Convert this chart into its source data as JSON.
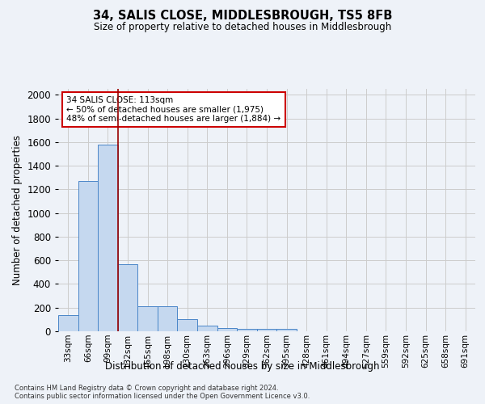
{
  "title": "34, SALIS CLOSE, MIDDLESBROUGH, TS5 8FB",
  "subtitle": "Size of property relative to detached houses in Middlesbrough",
  "xlabel": "Distribution of detached houses by size in Middlesbrough",
  "ylabel": "Number of detached properties",
  "categories": [
    "33sqm",
    "66sqm",
    "99sqm",
    "132sqm",
    "165sqm",
    "198sqm",
    "230sqm",
    "263sqm",
    "296sqm",
    "329sqm",
    "362sqm",
    "395sqm",
    "428sqm",
    "461sqm",
    "494sqm",
    "527sqm",
    "559sqm",
    "592sqm",
    "625sqm",
    "658sqm",
    "691sqm"
  ],
  "bar_heights": [
    140,
    1270,
    1580,
    570,
    215,
    215,
    100,
    50,
    25,
    20,
    20,
    20,
    0,
    0,
    0,
    0,
    0,
    0,
    0,
    0,
    0
  ],
  "bar_color": "#c5d8ef",
  "bar_edge_color": "#4a86c8",
  "grid_color": "#cccccc",
  "background_color": "#eef2f8",
  "red_line_x": 2.5,
  "annotation_line1": "34 SALIS CLOSE: 113sqm",
  "annotation_line2": "← 50% of detached houses are smaller (1,975)",
  "annotation_line3": "48% of semi-detached houses are larger (1,884) →",
  "annotation_box_color": "#ffffff",
  "annotation_box_edge": "#cc0000",
  "ylim": [
    0,
    2050
  ],
  "yticks": [
    0,
    200,
    400,
    600,
    800,
    1000,
    1200,
    1400,
    1600,
    1800,
    2000
  ],
  "footer_line1": "Contains HM Land Registry data © Crown copyright and database right 2024.",
  "footer_line2": "Contains public sector information licensed under the Open Government Licence v3.0."
}
